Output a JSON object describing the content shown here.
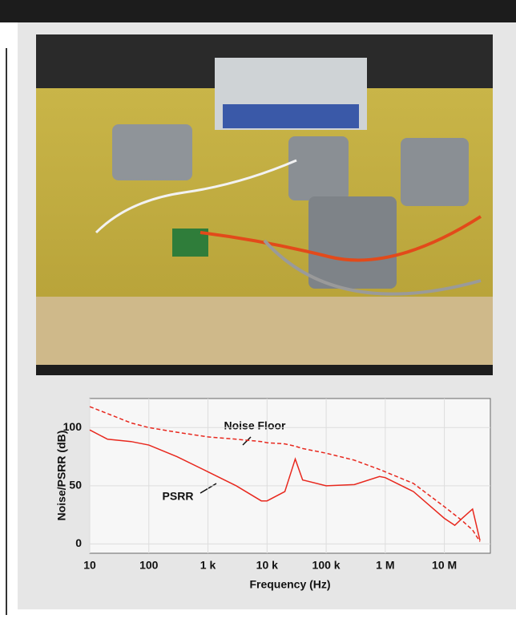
{
  "chart_data": {
    "type": "line",
    "x_label": "Frequency (Hz)",
    "y_label": "Noise/PSRR (dB)",
    "x_log": true,
    "grid": true,
    "xlim": [
      10,
      60000000
    ],
    "ylim": [
      -8,
      125
    ],
    "xticks": [
      10,
      100,
      {
        "value": 1000,
        "label": "1 k"
      },
      {
        "value": 10000,
        "label": "10 k"
      },
      {
        "value": 100000,
        "label": "100 k"
      },
      {
        "value": 1000000,
        "label": "1 M"
      },
      {
        "value": 10000000,
        "label": "10 M"
      }
    ],
    "yticks": [
      0,
      50,
      100
    ],
    "x": [
      10,
      20,
      50,
      100,
      300,
      1000,
      3000,
      8000,
      10000,
      20000,
      30000,
      40000,
      100000,
      300000,
      800000,
      1000000,
      3000000,
      10000000,
      15000000,
      20000000,
      30000000,
      40000000
    ],
    "series": [
      {
        "name": "Noise Floor",
        "color": "#e8281e",
        "style": "dashed",
        "values": [
          118,
          112,
          104,
          100,
          96,
          92,
          90,
          88,
          87,
          86,
          84,
          82,
          78,
          72,
          64,
          62,
          52,
          32,
          25,
          20,
          12,
          2
        ]
      },
      {
        "name": "PSRR",
        "color": "#e8281e",
        "style": "solid",
        "values": [
          98,
          90,
          88,
          85,
          75,
          62,
          50,
          37,
          37,
          45,
          73,
          55,
          50,
          51,
          58,
          57,
          45,
          22,
          16,
          22,
          30,
          3
        ]
      }
    ]
  }
}
